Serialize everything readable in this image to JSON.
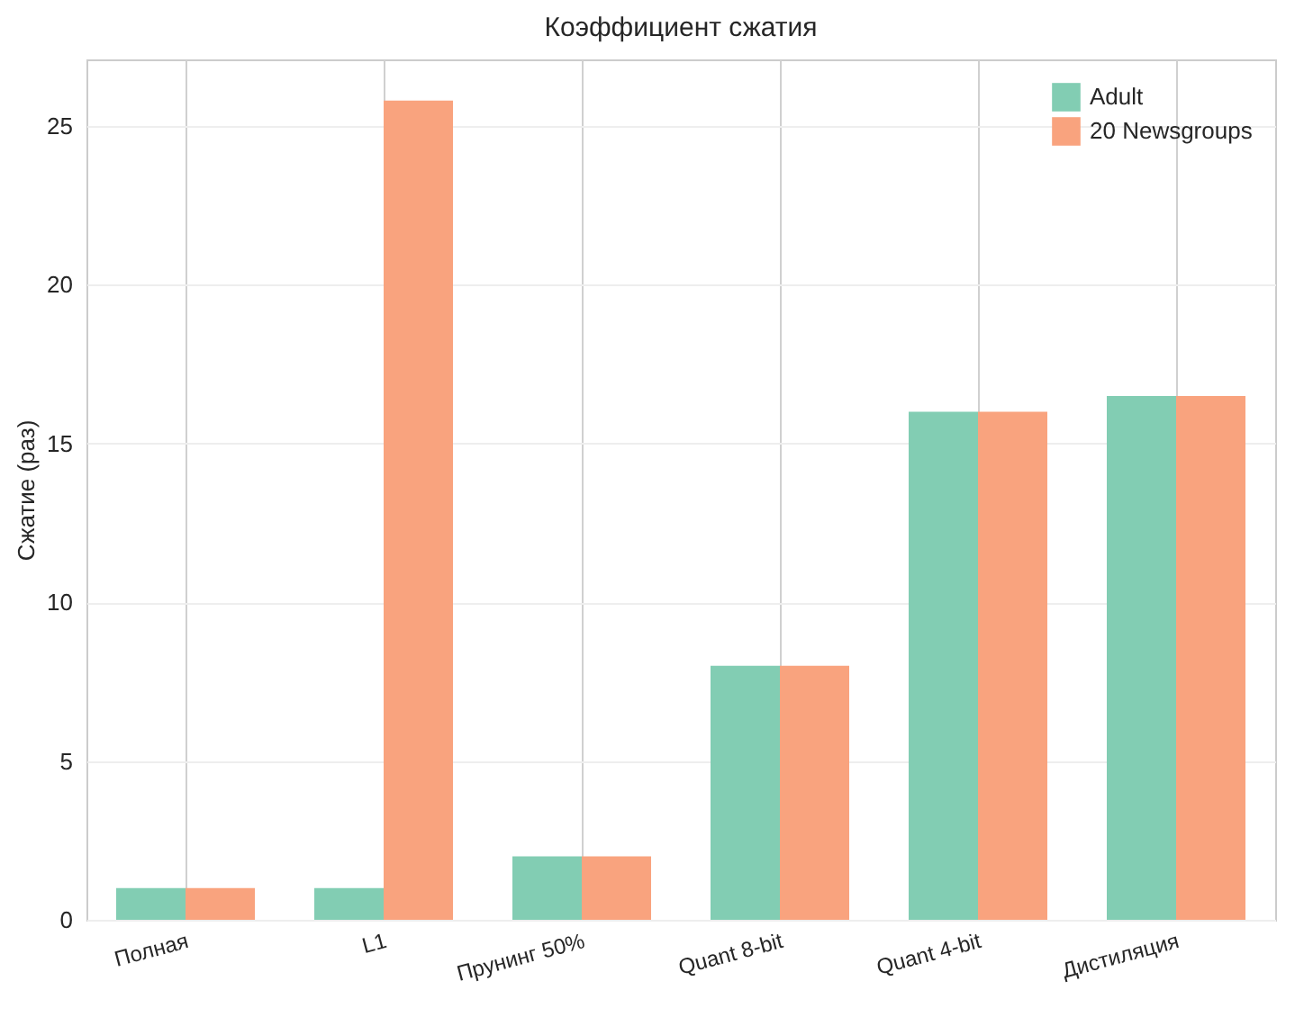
{
  "chart_data": {
    "type": "bar",
    "title": "Коэффициент сжатия",
    "ylabel": "Сжатие (раз)",
    "categories": [
      "Полная",
      "L1",
      "Прунинг 50%",
      "Quant 8-bit",
      "Quant 4-bit",
      "Дистиляция"
    ],
    "series": [
      {
        "name": "Adult",
        "color": "#82cdb3",
        "values": [
          1,
          1,
          2,
          8,
          16,
          16.5
        ]
      },
      {
        "name": "20 Newsgroups",
        "color": "#f9a37e",
        "values": [
          1,
          25.8,
          2,
          8,
          16,
          16.5
        ]
      }
    ],
    "ylim": [
      0,
      27.1
    ],
    "yticks": [
      0,
      5,
      10,
      15,
      20,
      25
    ],
    "grid": true,
    "legend": "top right"
  }
}
